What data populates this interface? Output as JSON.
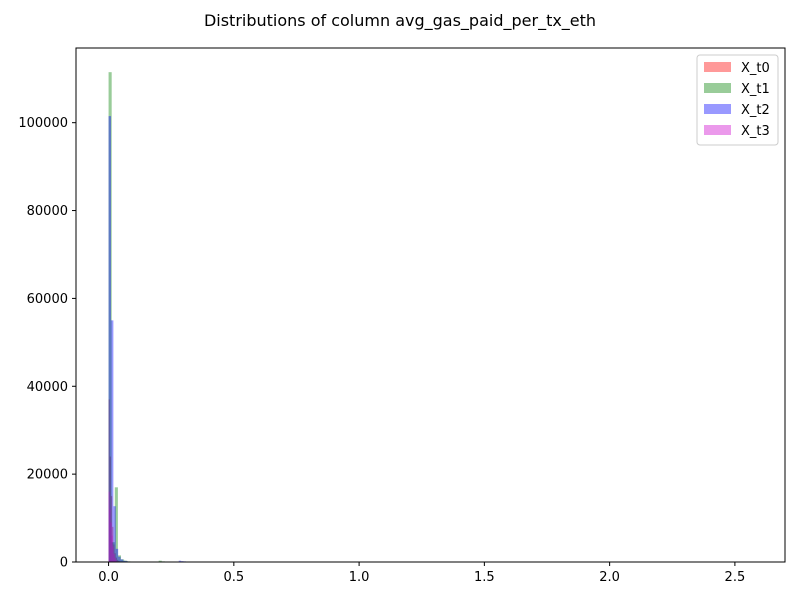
{
  "chart_data": {
    "type": "bar",
    "title": "Distributions of column avg_gas_paid_per_tx_eth",
    "xlabel": "",
    "ylabel": "",
    "xlim": [
      -0.13,
      2.7
    ],
    "ylim": [
      0,
      117000
    ],
    "x_ticks": [
      {
        "value": 0.0,
        "label": "0.0"
      },
      {
        "value": 0.5,
        "label": "0.5"
      },
      {
        "value": 1.0,
        "label": "1.0"
      },
      {
        "value": 1.5,
        "label": "1.5"
      },
      {
        "value": 2.0,
        "label": "2.0"
      },
      {
        "value": 2.5,
        "label": "2.5"
      }
    ],
    "y_ticks": [
      {
        "value": 0,
        "label": "0"
      },
      {
        "value": 20000,
        "label": "20000"
      },
      {
        "value": 40000,
        "label": "40000"
      },
      {
        "value": 60000,
        "label": "60000"
      },
      {
        "value": 80000,
        "label": "80000"
      },
      {
        "value": 100000,
        "label": "100000"
      }
    ],
    "grid": false,
    "legend_position": "top-right",
    "series": [
      {
        "name": "X_t0",
        "color": "#ff0000",
        "bin_width": 0.0048,
        "bins": [
          {
            "x0": 0.0,
            "count": 37000
          },
          {
            "x0": 0.0048,
            "count": 24000
          },
          {
            "x0": 0.0096,
            "count": 15000
          },
          {
            "x0": 0.0144,
            "count": 8000
          },
          {
            "x0": 0.0192,
            "count": 4000
          },
          {
            "x0": 0.024,
            "count": 2000
          },
          {
            "x0": 0.0288,
            "count": 1000
          },
          {
            "x0": 0.0336,
            "count": 500
          },
          {
            "x0": 0.0384,
            "count": 250
          },
          {
            "x0": 0.0432,
            "count": 120
          }
        ]
      },
      {
        "name": "X_t1",
        "color": "#008000",
        "bin_width": 0.0124,
        "bins": [
          {
            "x0": 0.0,
            "count": 111500
          },
          {
            "x0": 0.0124,
            "count": 4500
          },
          {
            "x0": 0.0248,
            "count": 17000
          },
          {
            "x0": 0.0372,
            "count": 1500
          },
          {
            "x0": 0.0496,
            "count": 600
          },
          {
            "x0": 0.062,
            "count": 300
          },
          {
            "x0": 0.0744,
            "count": 150
          },
          {
            "x0": 0.2,
            "count": 300
          },
          {
            "x0": 0.2124,
            "count": 150
          }
        ]
      },
      {
        "name": "X_t2",
        "color": "#0000ff",
        "bin_width": 0.0096,
        "bins": [
          {
            "x0": 0.0,
            "count": 101500
          },
          {
            "x0": 0.0096,
            "count": 55000
          },
          {
            "x0": 0.0192,
            "count": 12700
          },
          {
            "x0": 0.0288,
            "count": 3000
          },
          {
            "x0": 0.0384,
            "count": 1200
          },
          {
            "x0": 0.048,
            "count": 600
          },
          {
            "x0": 0.0576,
            "count": 300
          },
          {
            "x0": 0.0672,
            "count": 200
          },
          {
            "x0": 0.0768,
            "count": 100
          },
          {
            "x0": 0.28,
            "count": 300
          },
          {
            "x0": 0.2896,
            "count": 200
          },
          {
            "x0": 0.2992,
            "count": 150
          }
        ]
      },
      {
        "name": "X_t3",
        "color": "#cc00cc",
        "bin_width": 0.004,
        "bins": [
          {
            "x0": 0.0,
            "count": 16000
          },
          {
            "x0": 0.004,
            "count": 12000
          },
          {
            "x0": 0.008,
            "count": 9000
          },
          {
            "x0": 0.012,
            "count": 6000
          },
          {
            "x0": 0.016,
            "count": 3500
          },
          {
            "x0": 0.02,
            "count": 1800
          },
          {
            "x0": 0.024,
            "count": 900
          },
          {
            "x0": 0.028,
            "count": 400
          }
        ]
      }
    ]
  }
}
